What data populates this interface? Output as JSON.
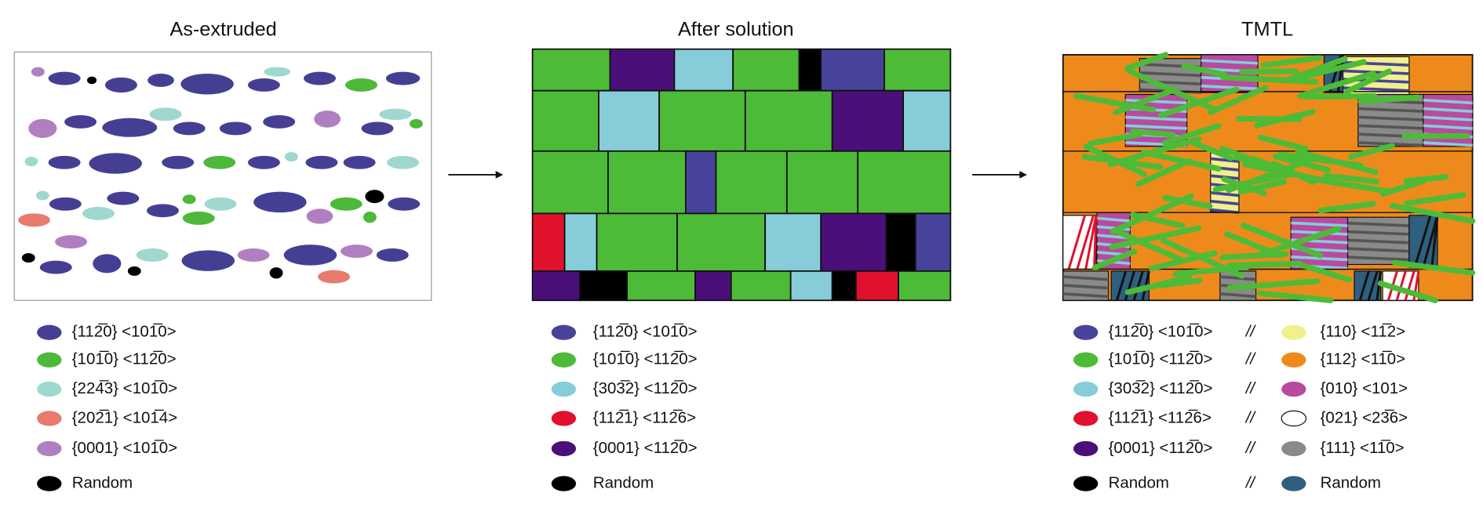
{
  "panels": [
    {
      "title": "As-extruded",
      "legend": [
        {
          "label": "{112̅0} <101̅0>",
          "color": "#453f94"
        },
        {
          "label": "{101̅0} <112̅0>",
          "color": "#4db83a"
        },
        {
          "label": "{224̅3} <101̅0>",
          "color": "#9fd8cf"
        },
        {
          "label": "{202̅1} <101̅4>",
          "color": "#e87a6e"
        },
        {
          "label": "{0001} <101̅0>",
          "color": "#b07fc0"
        },
        {
          "label": "Random",
          "color": "#000000"
        }
      ]
    },
    {
      "title": "After solution",
      "legend": [
        {
          "label": "{112̅0} <101̅0>",
          "color": "#48439a"
        },
        {
          "label": "{101̅0} <112̅0>",
          "color": "#4dbb37"
        },
        {
          "label": "{303̅2} <112̅0>",
          "color": "#87ccd9"
        },
        {
          "label": "{112̅1} <112̅6>",
          "color": "#e0112d"
        },
        {
          "label": "{0001} <112̅0>",
          "color": "#4b0f7a"
        },
        {
          "label": "Random",
          "color": "#000000"
        }
      ]
    },
    {
      "title": "TMTL",
      "legend": [
        {
          "label": "{112̅0} <101̅0>",
          "color": "#48439a"
        },
        {
          "label": "{101̅0} <112̅0>",
          "color": "#4dbb37"
        },
        {
          "label": "{303̅2} <112̅0>",
          "color": "#87ccd9"
        },
        {
          "label": "{112̅1} <112̅6>",
          "color": "#e0112d"
        },
        {
          "label": "{0001} <112̅0>",
          "color": "#4b0f7a"
        },
        {
          "label": "Random",
          "color": "#000000"
        }
      ],
      "legend_right": [
        {
          "label": "{110} <11̅2>",
          "color": "#f1f08a"
        },
        {
          "label": "{112} <11̅0>",
          "color": "#ee8a1c"
        },
        {
          "label": "{010} <101>",
          "color": "#b94aa0"
        },
        {
          "label": "{021} <23̅6>",
          "color": "#ffffff"
        },
        {
          "label": "{111} <11̅0>",
          "color": "#8a8a8a"
        },
        {
          "label": "Random",
          "color": "#2f5f7f"
        }
      ]
    }
  ],
  "separator": "//"
}
